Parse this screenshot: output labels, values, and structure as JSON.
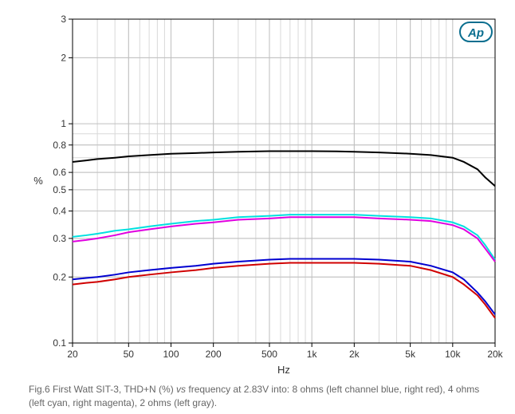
{
  "chart": {
    "type": "line",
    "title": null,
    "logo_text": "Ap",
    "logo_color": "#0a6e8f",
    "logo_fill": "#ffffff",
    "background_color": "#ffffff",
    "plot_border_color": "#000000",
    "grid_major_color": "#bfbfbf",
    "grid_minor_color": "#d9d9d9",
    "tick_label_fontsize": 12,
    "axis_label_fontsize": 13,
    "x": {
      "label": "Hz",
      "scale": "log",
      "min": 20,
      "max": 20000,
      "ticks": [
        20,
        50,
        100,
        200,
        500,
        1000,
        2000,
        5000,
        10000,
        20000
      ],
      "tick_labels": [
        "20",
        "50",
        "100",
        "200",
        "500",
        "1k",
        "2k",
        "5k",
        "10k",
        "20k"
      ]
    },
    "y": {
      "label": "%",
      "scale": "log",
      "min": 0.1,
      "max": 3.0,
      "ticks": [
        0.1,
        0.2,
        0.3,
        0.4,
        0.5,
        0.6,
        0.8,
        1,
        2,
        3
      ],
      "tick_labels": [
        "0.1",
        "0.2",
        "0.3",
        "0.4",
        "0.5",
        "0.6",
        "0.8",
        "1",
        "2",
        "3"
      ]
    },
    "series": [
      {
        "name": "2-ohm-left-gray",
        "color": "#000000",
        "width": 2,
        "points": [
          [
            20,
            0.67
          ],
          [
            25,
            0.68
          ],
          [
            30,
            0.69
          ],
          [
            40,
            0.7
          ],
          [
            50,
            0.71
          ],
          [
            70,
            0.72
          ],
          [
            100,
            0.73
          ],
          [
            150,
            0.735
          ],
          [
            200,
            0.74
          ],
          [
            300,
            0.745
          ],
          [
            500,
            0.75
          ],
          [
            700,
            0.75
          ],
          [
            1000,
            0.75
          ],
          [
            1500,
            0.748
          ],
          [
            2000,
            0.745
          ],
          [
            3000,
            0.74
          ],
          [
            5000,
            0.73
          ],
          [
            7000,
            0.72
          ],
          [
            10000,
            0.7
          ],
          [
            12000,
            0.67
          ],
          [
            15000,
            0.62
          ],
          [
            17000,
            0.57
          ],
          [
            20000,
            0.52
          ]
        ]
      },
      {
        "name": "4-ohm-left-cyan",
        "color": "#00e0e0",
        "width": 2,
        "points": [
          [
            20,
            0.305
          ],
          [
            25,
            0.31
          ],
          [
            30,
            0.315
          ],
          [
            40,
            0.325
          ],
          [
            50,
            0.33
          ],
          [
            70,
            0.34
          ],
          [
            100,
            0.35
          ],
          [
            150,
            0.36
          ],
          [
            200,
            0.365
          ],
          [
            300,
            0.375
          ],
          [
            500,
            0.38
          ],
          [
            700,
            0.385
          ],
          [
            1000,
            0.385
          ],
          [
            1500,
            0.385
          ],
          [
            2000,
            0.385
          ],
          [
            3000,
            0.38
          ],
          [
            5000,
            0.375
          ],
          [
            7000,
            0.37
          ],
          [
            10000,
            0.355
          ],
          [
            12000,
            0.34
          ],
          [
            15000,
            0.31
          ],
          [
            17000,
            0.28
          ],
          [
            20000,
            0.24
          ]
        ]
      },
      {
        "name": "4-ohm-right-magenta",
        "color": "#e000e0",
        "width": 2,
        "points": [
          [
            20,
            0.29
          ],
          [
            25,
            0.295
          ],
          [
            30,
            0.3
          ],
          [
            40,
            0.31
          ],
          [
            50,
            0.32
          ],
          [
            70,
            0.33
          ],
          [
            100,
            0.34
          ],
          [
            150,
            0.35
          ],
          [
            200,
            0.355
          ],
          [
            300,
            0.365
          ],
          [
            500,
            0.37
          ],
          [
            700,
            0.375
          ],
          [
            1000,
            0.375
          ],
          [
            1500,
            0.375
          ],
          [
            2000,
            0.375
          ],
          [
            3000,
            0.37
          ],
          [
            5000,
            0.365
          ],
          [
            7000,
            0.36
          ],
          [
            10000,
            0.345
          ],
          [
            12000,
            0.33
          ],
          [
            15000,
            0.3
          ],
          [
            17000,
            0.27
          ],
          [
            20000,
            0.235
          ]
        ]
      },
      {
        "name": "8-ohm-left-blue",
        "color": "#0000d0",
        "width": 2,
        "points": [
          [
            20,
            0.195
          ],
          [
            25,
            0.198
          ],
          [
            30,
            0.2
          ],
          [
            40,
            0.205
          ],
          [
            50,
            0.21
          ],
          [
            70,
            0.215
          ],
          [
            100,
            0.22
          ],
          [
            150,
            0.225
          ],
          [
            200,
            0.23
          ],
          [
            300,
            0.235
          ],
          [
            500,
            0.24
          ],
          [
            700,
            0.242
          ],
          [
            1000,
            0.242
          ],
          [
            1500,
            0.242
          ],
          [
            2000,
            0.242
          ],
          [
            3000,
            0.24
          ],
          [
            5000,
            0.235
          ],
          [
            7000,
            0.225
          ],
          [
            10000,
            0.21
          ],
          [
            12000,
            0.195
          ],
          [
            15000,
            0.17
          ],
          [
            17000,
            0.155
          ],
          [
            20000,
            0.135
          ]
        ]
      },
      {
        "name": "8-ohm-right-red",
        "color": "#d00000",
        "width": 2,
        "points": [
          [
            20,
            0.185
          ],
          [
            25,
            0.188
          ],
          [
            30,
            0.19
          ],
          [
            40,
            0.195
          ],
          [
            50,
            0.2
          ],
          [
            70,
            0.205
          ],
          [
            100,
            0.21
          ],
          [
            150,
            0.215
          ],
          [
            200,
            0.22
          ],
          [
            300,
            0.225
          ],
          [
            500,
            0.23
          ],
          [
            700,
            0.232
          ],
          [
            1000,
            0.232
          ],
          [
            1500,
            0.232
          ],
          [
            2000,
            0.232
          ],
          [
            3000,
            0.23
          ],
          [
            5000,
            0.225
          ],
          [
            7000,
            0.215
          ],
          [
            10000,
            0.2
          ],
          [
            12000,
            0.185
          ],
          [
            15000,
            0.165
          ],
          [
            17000,
            0.15
          ],
          [
            20000,
            0.13
          ]
        ]
      }
    ]
  },
  "caption": {
    "prefix": "Fig.6 First Watt SIT-3, THD+N (%) ",
    "vs": "vs",
    "rest": " frequency at 2.83V into: 8 ohms (left channel blue, right red), 4 ohms (left cyan, right magenta), 2 ohms (left gray)."
  }
}
